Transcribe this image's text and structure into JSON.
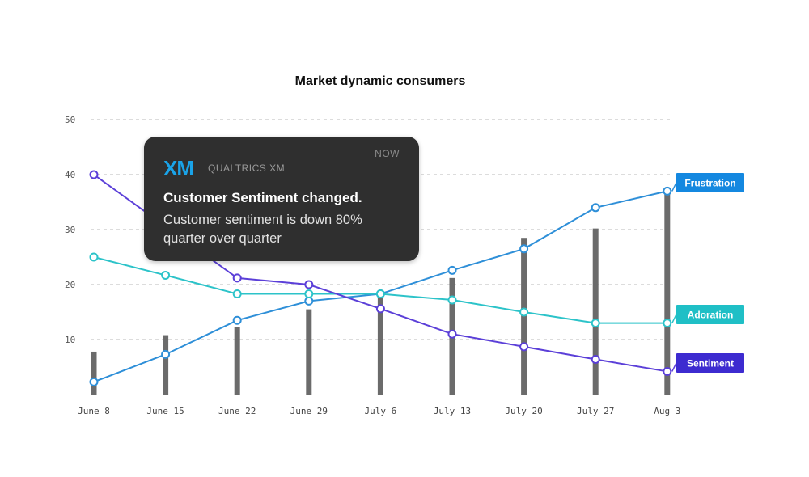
{
  "chart_data": {
    "type": "bar+line",
    "title": "Market dynamic consumers",
    "categories": [
      "June 8",
      "June 15",
      "June 22",
      "June 29",
      "July 6",
      "July 13",
      "July 20",
      "July 27",
      "Aug 3"
    ],
    "ylim": [
      0,
      50
    ],
    "yticks": [
      10,
      20,
      30,
      40,
      50
    ],
    "grid": true,
    "bars": {
      "values": [
        7.8,
        10.8,
        12.3,
        15.5,
        17.5,
        21.2,
        28.5,
        30.2,
        37.2
      ],
      "color": "#6b6b6b"
    },
    "series": [
      {
        "name": "Frustration",
        "color": "#2e8fd8",
        "label_color": "#1488e0",
        "values": [
          2.3,
          7.3,
          13.5,
          17.0,
          18.3,
          22.6,
          26.5,
          34.0,
          37.0
        ]
      },
      {
        "name": "Adoration",
        "color": "#2cc3c9",
        "label_color": "#1fbfc6",
        "values": [
          25.0,
          21.7,
          18.3,
          18.3,
          18.3,
          17.2,
          15.0,
          13.0,
          13.0
        ]
      },
      {
        "name": "Sentiment",
        "color": "#5b3fd8",
        "label_color": "#3d2bd0",
        "values": [
          40.0,
          null,
          21.2,
          20.0,
          15.6,
          11.0,
          8.7,
          6.4,
          4.2
        ]
      }
    ],
    "legend": "right"
  },
  "notification": {
    "logo": "XM",
    "app_name": "QUALTRICS XM",
    "time": "NOW",
    "title": "Customer Sentiment changed.",
    "body": "Customer sentiment is down 80% quarter over quarter"
  }
}
